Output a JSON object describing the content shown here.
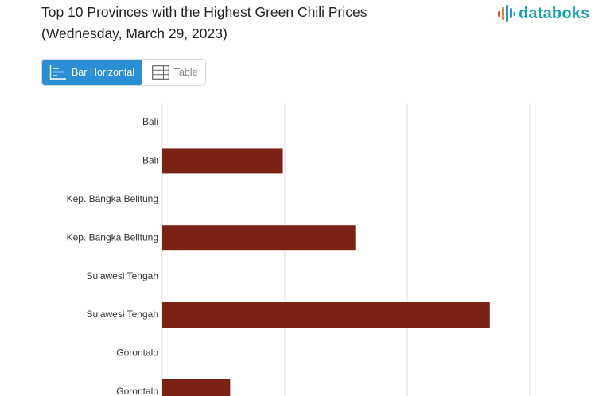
{
  "title": {
    "line1": "Top 10 Provinces with the Highest Green Chili Prices",
    "line2": "(Wednesday, March 29, 2023)"
  },
  "brand": {
    "name": "databoks",
    "color": "#1aa3ad"
  },
  "view_toggle": {
    "bar_label": "Bar Horizontal",
    "table_label": "Table",
    "active": "bar",
    "active_color": "#2b8fd6"
  },
  "chart_data": {
    "type": "bar",
    "orientation": "horizontal",
    "categories": [
      "Bali",
      "Bali",
      "Kep. Bangka Belitung",
      "Kep. Bangka Belitung",
      "Sulawesi Tengah",
      "Sulawesi Tengah",
      "Gorontalo",
      "Gorontalo"
    ],
    "values": [
      null,
      49200,
      null,
      78800,
      null,
      133700,
      null,
      27700
    ],
    "xlim": [
      0,
      150000
    ],
    "grid": true,
    "bar_color": "#7a2315"
  }
}
